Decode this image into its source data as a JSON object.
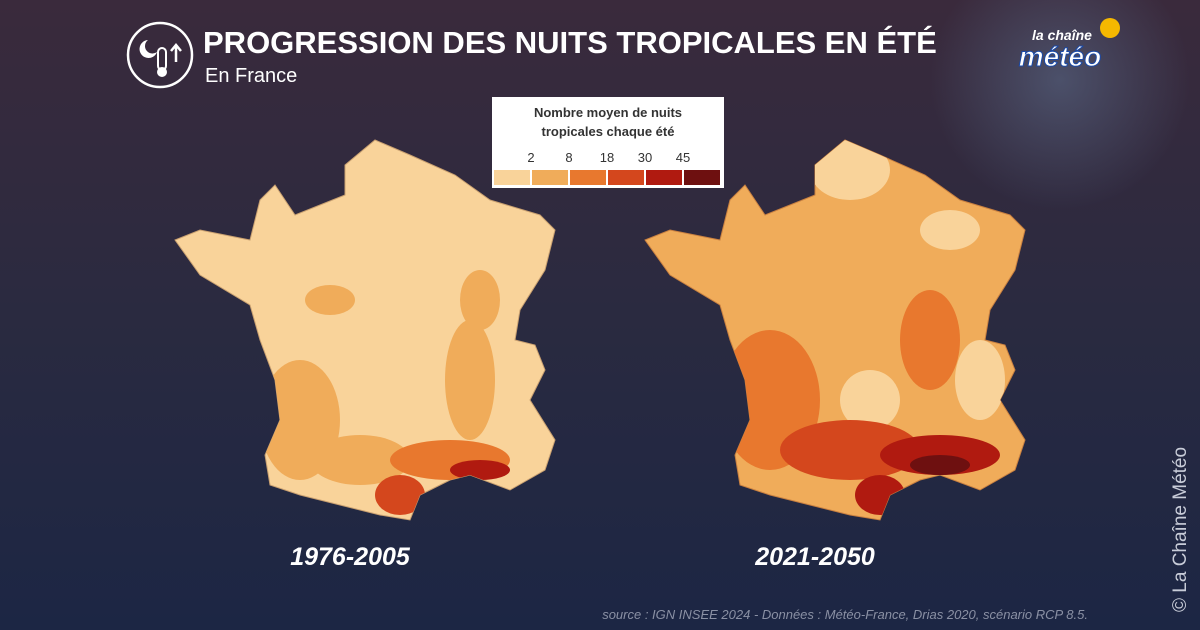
{
  "header": {
    "title": "PROGRESSION DES NUITS TROPICALES EN ÉTÉ",
    "subtitle": "En France"
  },
  "logo": {
    "top": "la chaîne",
    "bottom": "météo"
  },
  "legend": {
    "title_line1": "Nombre moyen de nuits",
    "title_line2": "tropicales chaque été",
    "ticks": [
      2,
      8,
      18,
      30,
      45
    ],
    "colors": [
      "#f9d39a",
      "#f0ac5a",
      "#e8782e",
      "#d4471d",
      "#b01a10",
      "#6e1010"
    ]
  },
  "maps": [
    {
      "period": "1976-2005"
    },
    {
      "period": "2021-2050"
    }
  ],
  "source": "source : IGN INSEE 2024 - Données : Météo-France, Drias 2020, scénario RCP 8.5.",
  "watermark": "© La Chaîne Météo"
}
